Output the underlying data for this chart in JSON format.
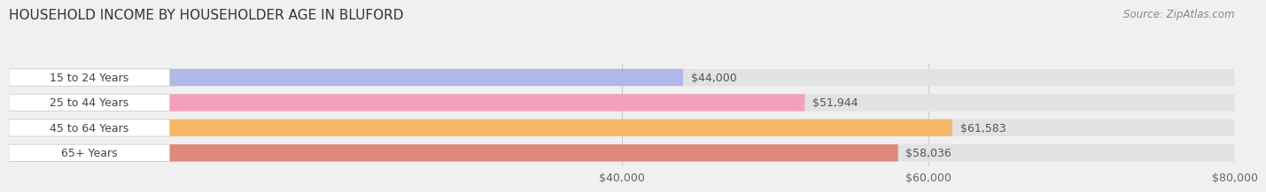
{
  "title": "HOUSEHOLD INCOME BY HOUSEHOLDER AGE IN BLUFORD",
  "source": "Source: ZipAtlas.com",
  "categories": [
    "15 to 24 Years",
    "25 to 44 Years",
    "45 to 64 Years",
    "65+ Years"
  ],
  "values": [
    44000,
    51944,
    61583,
    58036
  ],
  "bar_colors": [
    "#b0b8e8",
    "#f4a0bc",
    "#f5b86a",
    "#e08878"
  ],
  "xlim": [
    0,
    80000
  ],
  "xticks": [
    40000,
    60000,
    80000
  ],
  "xtick_labels": [
    "$40,000",
    "$60,000",
    "$80,000"
  ],
  "value_labels": [
    "$44,000",
    "$51,944",
    "$61,583",
    "$58,036"
  ],
  "title_fontsize": 11,
  "label_fontsize": 9,
  "tick_fontsize": 9,
  "source_fontsize": 8.5,
  "bg_color": "#f0f0f0",
  "bar_bg_color": "#e2e2e2"
}
